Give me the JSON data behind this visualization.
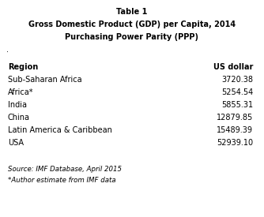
{
  "title_line1": "Table 1",
  "title_line2": "Gross Domestic Product (GDP) per Capita, 2014",
  "title_line3": "Purchasing Power Parity (PPP)",
  "col_header_left": "Region",
  "col_header_right": "US dollar",
  "rows": [
    [
      "Sub-Saharan Africa",
      "3720.38"
    ],
    [
      "Africa*",
      "5254.54"
    ],
    [
      "India",
      "5855.31"
    ],
    [
      "China",
      "12879.85"
    ],
    [
      "Latin America & Caribbean",
      "15489.39"
    ],
    [
      "USA",
      "52939.10"
    ]
  ],
  "footnote1": "Source: IMF Database, April 2015",
  "footnote2": "*Author estimate from IMF data",
  "background_color": "#ffffff",
  "text_color": "#000000",
  "title_fontsize": 7.0,
  "header_fontsize": 7.0,
  "body_fontsize": 7.0,
  "footnote_fontsize": 6.2
}
